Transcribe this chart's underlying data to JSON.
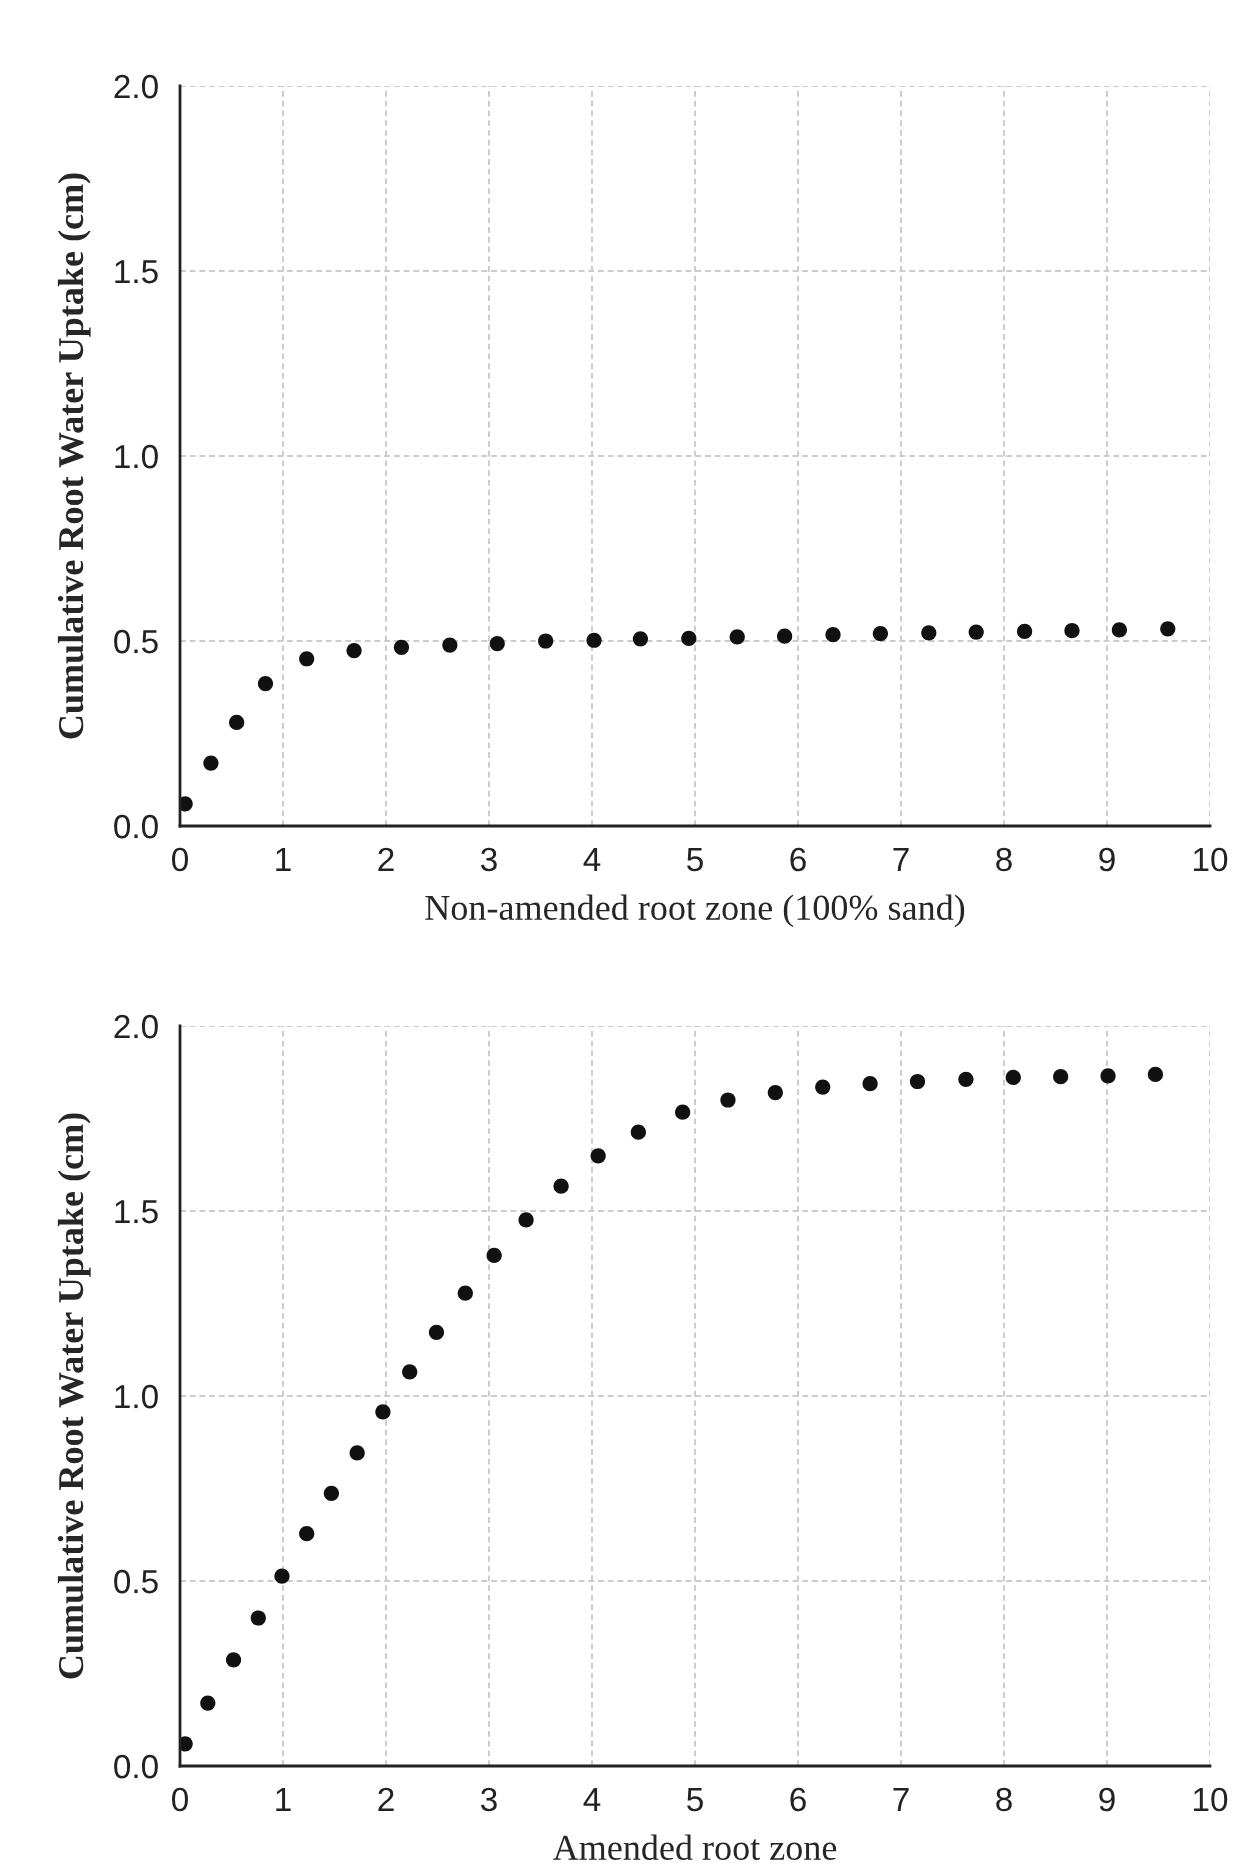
{
  "chart_data": [
    {
      "type": "scatter",
      "xlabel": "Non-amended root zone (100% sand)",
      "ylabel": "Cumulative Root Water Uptake (cm)",
      "xlim": [
        0,
        10
      ],
      "ylim": [
        0,
        2
      ],
      "xticks": [
        0,
        1,
        2,
        3,
        4,
        5,
        6,
        7,
        8,
        9,
        10
      ],
      "yticks": [
        {
          "value": 0,
          "label": "0.0"
        },
        {
          "value": 0.5,
          "label": "0.5"
        },
        {
          "value": 1,
          "label": "1.0"
        },
        {
          "value": 1.5,
          "label": "1.5"
        },
        {
          "value": 2,
          "label": "2.0"
        }
      ],
      "grid": true,
      "marker": "circle",
      "series": [
        {
          "color": "#111111",
          "x": [
            0.05,
            0.3,
            0.55,
            0.83,
            1.23,
            1.69,
            2.15,
            2.62,
            3.08,
            3.55,
            4.02,
            4.47,
            4.94,
            5.41,
            5.87,
            6.34,
            6.8,
            7.27,
            7.73,
            8.2,
            8.66,
            9.12,
            9.59
          ],
          "values": [
            0.06,
            0.17,
            0.28,
            0.385,
            0.452,
            0.474,
            0.483,
            0.489,
            0.493,
            0.5,
            0.502,
            0.506,
            0.507,
            0.511,
            0.513,
            0.517,
            0.52,
            0.522,
            0.524,
            0.526,
            0.528,
            0.53,
            0.533
          ]
        }
      ]
    },
    {
      "type": "scatter",
      "xlabel": "Amended root zone",
      "ylabel": "Cumulative Root Water Uptake (cm)",
      "xlim": [
        0,
        10
      ],
      "ylim": [
        0,
        2
      ],
      "xticks": [
        0,
        1,
        2,
        3,
        4,
        5,
        6,
        7,
        8,
        9,
        10
      ],
      "yticks": [
        {
          "value": 0,
          "label": "0.0"
        },
        {
          "value": 0.5,
          "label": "0.5"
        },
        {
          "value": 1,
          "label": "1.0"
        },
        {
          "value": 1.5,
          "label": "1.5"
        },
        {
          "value": 2,
          "label": "2.0"
        }
      ],
      "grid": true,
      "marker": "circle",
      "series": [
        {
          "color": "#111111",
          "x": [
            0.05,
            0.27,
            0.52,
            0.76,
            0.99,
            1.23,
            1.47,
            1.72,
            1.97,
            2.23,
            2.49,
            2.77,
            3.05,
            3.36,
            3.7,
            4.06,
            4.45,
            4.88,
            5.32,
            5.78,
            6.24,
            6.7,
            7.16,
            7.63,
            8.09,
            8.55,
            9.01,
            9.47
          ],
          "values": [
            0.06,
            0.17,
            0.287,
            0.4,
            0.513,
            0.628,
            0.737,
            0.846,
            0.957,
            1.065,
            1.172,
            1.278,
            1.38,
            1.476,
            1.567,
            1.649,
            1.713,
            1.767,
            1.8,
            1.82,
            1.835,
            1.844,
            1.85,
            1.856,
            1.861,
            1.863,
            1.865,
            1.869
          ]
        }
      ]
    }
  ]
}
